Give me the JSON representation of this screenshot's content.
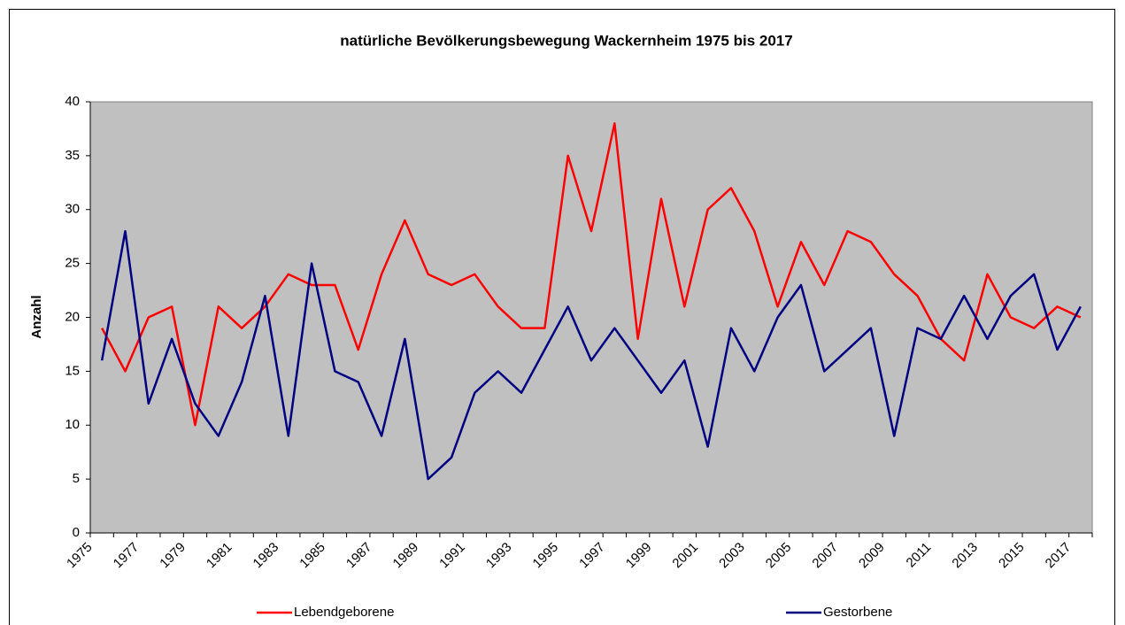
{
  "chart_data": {
    "type": "line",
    "title": "natürliche Bevölkerungsbewegung Wackernheim 1975 bis 2017",
    "y_label": "Anzahl",
    "categories": [
      "1975",
      null,
      "1977",
      null,
      "1979",
      null,
      "1981",
      null,
      "1983",
      null,
      "1985",
      null,
      "1987",
      null,
      "1989",
      null,
      "1991",
      null,
      "1993",
      null,
      "1995",
      null,
      "1997",
      null,
      "1999",
      null,
      "2001",
      null,
      "2003",
      null,
      "2005",
      null,
      "2007",
      null,
      "2009",
      null,
      "2011",
      null,
      "2013",
      null,
      "2015",
      null,
      "2017"
    ],
    "series": [
      {
        "name": "Lebendgeborene",
        "color": "#ff0000",
        "values": [
          19,
          15,
          20,
          21,
          10,
          21,
          19,
          21,
          24,
          23,
          23,
          17,
          24,
          29,
          24,
          23,
          24,
          21,
          19,
          19,
          35,
          28,
          38,
          18,
          31,
          21,
          30,
          32,
          28,
          21,
          27,
          23,
          28,
          27,
          24,
          22,
          18,
          16,
          24,
          20,
          19,
          21,
          20
        ]
      },
      {
        "name": "Gestorbene",
        "color": "#000080",
        "values": [
          16,
          28,
          12,
          18,
          12,
          9,
          14,
          22,
          9,
          25,
          15,
          14,
          9,
          18,
          5,
          7,
          13,
          15,
          13,
          17,
          21,
          16,
          19,
          16,
          13,
          16,
          8,
          19,
          15,
          20,
          23,
          15,
          17,
          19,
          9,
          19,
          18,
          22,
          18,
          22,
          24,
          17,
          21
        ]
      }
    ],
    "ylim": [
      0,
      40
    ],
    "yticks": [
      0,
      5,
      10,
      15,
      20,
      25,
      30,
      35,
      40
    ],
    "plot_background": "#c0c0c0"
  }
}
